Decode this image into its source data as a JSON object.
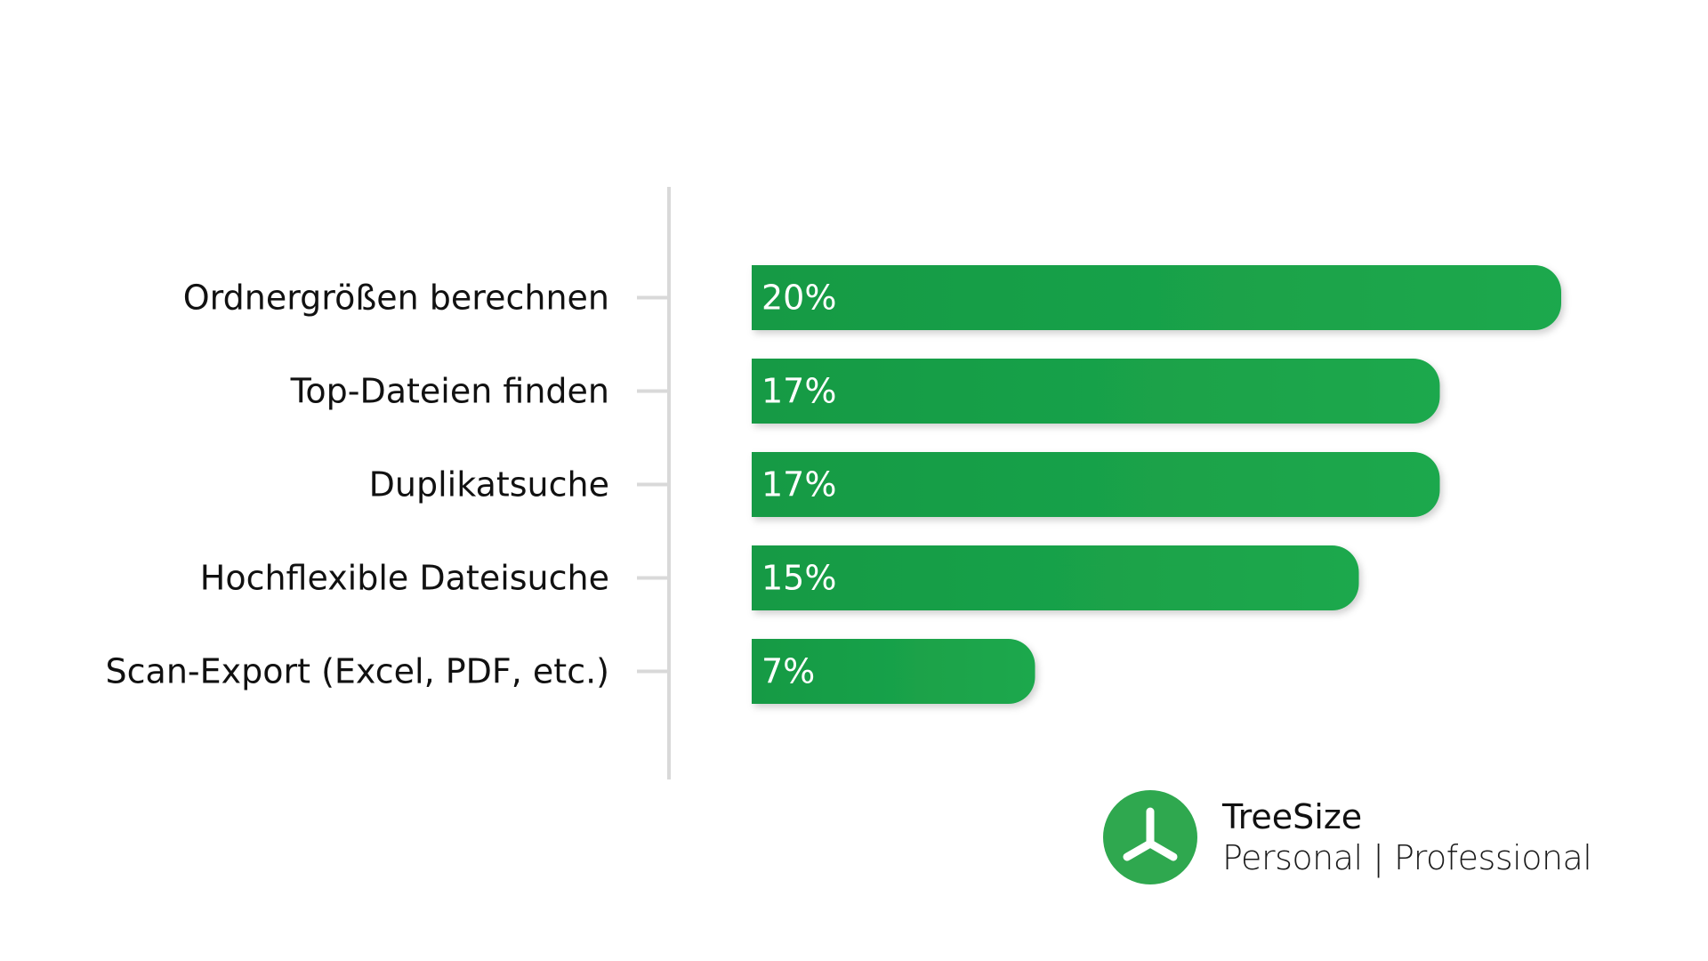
{
  "chart_data": {
    "type": "bar",
    "orientation": "horizontal",
    "categories": [
      "Ordnergrößen berechnen",
      "Top-Dateien finden",
      "Duplikatsuche",
      "Hochflexible Dateisuche",
      "Scan-Export (Excel, PDF, etc.)"
    ],
    "values": [
      20,
      17,
      17,
      15,
      7
    ],
    "value_labels": [
      "20%",
      "17%",
      "17%",
      "15%",
      "7%"
    ],
    "unit": "%",
    "xlim": [
      0,
      20
    ],
    "grid": false,
    "legend": "none",
    "colors": {
      "bar": "#16a34a",
      "bar_light": "#1fa84d",
      "axis": "#d9d9d9",
      "label": "#111111",
      "value_text": "#ffffff"
    }
  },
  "branding": {
    "product": "TreeSize",
    "editions": "Personal | Professional",
    "logo_icon": "treesize-logo-icon",
    "logo_color": "#2fa84f"
  }
}
